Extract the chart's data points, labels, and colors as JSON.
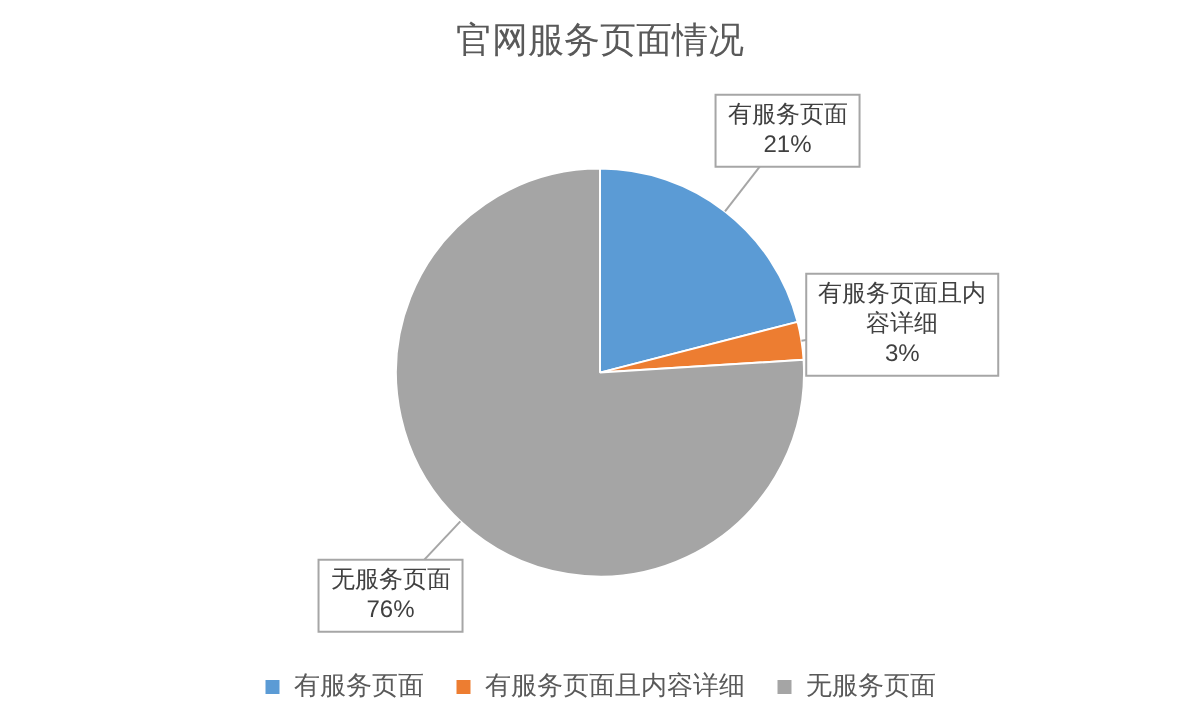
{
  "chart_data": {
    "type": "pie",
    "title": "官网服务页面情况",
    "categories": [
      "有服务页面",
      "有服务页面且内容详细",
      "无服务页面"
    ],
    "values": [
      21,
      3,
      76
    ],
    "value_labels": [
      "21%",
      "3%",
      "76%"
    ],
    "colors": [
      "#5b9bd5",
      "#ed7d31",
      "#a5a5a5"
    ],
    "data_labels": true,
    "legend": "bottom"
  }
}
